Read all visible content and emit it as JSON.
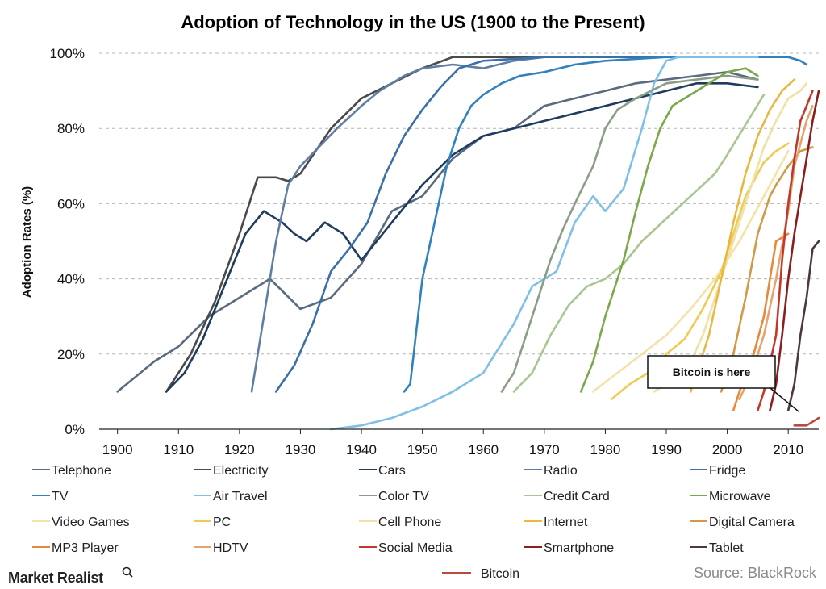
{
  "chart_data": {
    "type": "line",
    "title": "Adoption of Technology in the US (1900 to the Present)",
    "xlabel": "",
    "ylabel": "Adoption Rates (%)",
    "xlim": [
      1897,
      2015
    ],
    "ylim": [
      0,
      100
    ],
    "x_ticks": [
      1900,
      1910,
      1920,
      1930,
      1940,
      1950,
      1960,
      1970,
      1980,
      1990,
      2000,
      2010
    ],
    "y_ticks": [
      0,
      20,
      40,
      60,
      80,
      100
    ],
    "y_tick_labels": [
      "0%",
      "20%",
      "40%",
      "60%",
      "80%",
      "100%"
    ],
    "grid": "horizontal dashed",
    "legend_position": "bottom",
    "annotation": "Bitcoin is here",
    "source": "Source: BlackRock",
    "brand": "Market Realist",
    "series": [
      {
        "name": "Telephone",
        "color": "#5a6b7f",
        "points": [
          [
            1900,
            10
          ],
          [
            1903,
            14
          ],
          [
            1906,
            18
          ],
          [
            1910,
            22
          ],
          [
            1915,
            30
          ],
          [
            1920,
            35
          ],
          [
            1925,
            40
          ],
          [
            1930,
            32
          ],
          [
            1935,
            35
          ],
          [
            1940,
            44
          ],
          [
            1945,
            58
          ],
          [
            1950,
            62
          ],
          [
            1955,
            72
          ],
          [
            1960,
            78
          ],
          [
            1965,
            80
          ],
          [
            1970,
            86
          ],
          [
            1975,
            88
          ],
          [
            1980,
            90
          ],
          [
            1985,
            92
          ],
          [
            1990,
            93
          ],
          [
            1995,
            94
          ],
          [
            2000,
            95
          ],
          [
            2005,
            93
          ]
        ]
      },
      {
        "name": "Electricity",
        "color": "#4a4a4a",
        "points": [
          [
            1908,
            10
          ],
          [
            1912,
            20
          ],
          [
            1916,
            34
          ],
          [
            1920,
            52
          ],
          [
            1923,
            67
          ],
          [
            1926,
            67
          ],
          [
            1928,
            66
          ],
          [
            1930,
            68
          ],
          [
            1935,
            80
          ],
          [
            1940,
            88
          ],
          [
            1945,
            92
          ],
          [
            1950,
            96
          ],
          [
            1955,
            99
          ],
          [
            1960,
            99
          ],
          [
            1970,
            99
          ],
          [
            1990,
            99
          ],
          [
            2005,
            99
          ]
        ]
      },
      {
        "name": "Cars",
        "color": "#1f3b5e",
        "points": [
          [
            1908,
            10
          ],
          [
            1911,
            15
          ],
          [
            1914,
            24
          ],
          [
            1918,
            40
          ],
          [
            1921,
            52
          ],
          [
            1924,
            58
          ],
          [
            1927,
            55
          ],
          [
            1929,
            52
          ],
          [
            1931,
            50
          ],
          [
            1934,
            55
          ],
          [
            1937,
            52
          ],
          [
            1940,
            45
          ],
          [
            1945,
            55
          ],
          [
            1950,
            65
          ],
          [
            1955,
            73
          ],
          [
            1960,
            78
          ],
          [
            1965,
            80
          ],
          [
            1970,
            82
          ],
          [
            1975,
            84
          ],
          [
            1980,
            86
          ],
          [
            1985,
            88
          ],
          [
            1990,
            90
          ],
          [
            1995,
            92
          ],
          [
            2000,
            92
          ],
          [
            2005,
            91
          ]
        ]
      },
      {
        "name": "Radio",
        "color": "#5f7ea3",
        "points": [
          [
            1922,
            10
          ],
          [
            1924,
            30
          ],
          [
            1926,
            50
          ],
          [
            1928,
            65
          ],
          [
            1930,
            70
          ],
          [
            1933,
            75
          ],
          [
            1936,
            80
          ],
          [
            1940,
            86
          ],
          [
            1943,
            90
          ],
          [
            1947,
            94
          ],
          [
            1950,
            96
          ],
          [
            1955,
            97
          ],
          [
            1960,
            96
          ],
          [
            1965,
            98
          ],
          [
            1970,
            99
          ],
          [
            1990,
            99
          ],
          [
            2005,
            99
          ]
        ]
      },
      {
        "name": "Fridge",
        "color": "#3b6fa8",
        "points": [
          [
            1926,
            10
          ],
          [
            1929,
            17
          ],
          [
            1932,
            28
          ],
          [
            1935,
            42
          ],
          [
            1938,
            48
          ],
          [
            1941,
            55
          ],
          [
            1944,
            68
          ],
          [
            1947,
            78
          ],
          [
            1950,
            85
          ],
          [
            1953,
            91
          ],
          [
            1956,
            96
          ],
          [
            1960,
            98
          ],
          [
            1970,
            99
          ],
          [
            1990,
            99
          ],
          [
            2005,
            99
          ]
        ]
      },
      {
        "name": "TV",
        "color": "#2f82bd",
        "points": [
          [
            1947,
            10
          ],
          [
            1948,
            12
          ],
          [
            1950,
            40
          ],
          [
            1952,
            55
          ],
          [
            1954,
            70
          ],
          [
            1956,
            80
          ],
          [
            1958,
            86
          ],
          [
            1960,
            89
          ],
          [
            1963,
            92
          ],
          [
            1966,
            94
          ],
          [
            1970,
            95
          ],
          [
            1975,
            97
          ],
          [
            1980,
            98
          ],
          [
            1990,
            99
          ],
          [
            2000,
            99
          ],
          [
            2010,
            99
          ],
          [
            2012,
            98
          ],
          [
            2013,
            97
          ]
        ]
      },
      {
        "name": "Air Travel",
        "color": "#7fc0e8",
        "points": [
          [
            1935,
            0
          ],
          [
            1940,
            1
          ],
          [
            1945,
            3
          ],
          [
            1950,
            6
          ],
          [
            1955,
            10
          ],
          [
            1960,
            15
          ],
          [
            1965,
            28
          ],
          [
            1968,
            38
          ],
          [
            1972,
            42
          ],
          [
            1975,
            55
          ],
          [
            1978,
            62
          ],
          [
            1980,
            58
          ],
          [
            1983,
            64
          ],
          [
            1986,
            80
          ],
          [
            1988,
            92
          ],
          [
            1990,
            98
          ],
          [
            1992,
            99
          ],
          [
            2005,
            99
          ]
        ]
      },
      {
        "name": "Color TV",
        "color": "#8a9e86",
        "points": [
          [
            1963,
            10
          ],
          [
            1965,
            15
          ],
          [
            1967,
            25
          ],
          [
            1969,
            35
          ],
          [
            1971,
            45
          ],
          [
            1973,
            53
          ],
          [
            1975,
            60
          ],
          [
            1978,
            70
          ],
          [
            1980,
            80
          ],
          [
            1982,
            85
          ],
          [
            1985,
            88
          ],
          [
            1990,
            92
          ],
          [
            1995,
            93
          ],
          [
            2000,
            94
          ],
          [
            2005,
            93
          ]
        ]
      },
      {
        "name": "Credit Card",
        "color": "#a9c690",
        "points": [
          [
            1965,
            10
          ],
          [
            1968,
            15
          ],
          [
            1971,
            25
          ],
          [
            1974,
            33
          ],
          [
            1977,
            38
          ],
          [
            1980,
            40
          ],
          [
            1983,
            44
          ],
          [
            1986,
            50
          ],
          [
            1990,
            56
          ],
          [
            1994,
            62
          ],
          [
            1998,
            68
          ],
          [
            2000,
            73
          ],
          [
            2003,
            81
          ],
          [
            2006,
            89
          ]
        ]
      },
      {
        "name": "Microwave",
        "color": "#7aa84a",
        "points": [
          [
            1976,
            10
          ],
          [
            1978,
            18
          ],
          [
            1980,
            30
          ],
          [
            1983,
            45
          ],
          [
            1985,
            58
          ],
          [
            1987,
            70
          ],
          [
            1989,
            80
          ],
          [
            1991,
            86
          ],
          [
            1993,
            88
          ],
          [
            1995,
            90
          ],
          [
            1997,
            92
          ],
          [
            2000,
            95
          ],
          [
            2003,
            96
          ],
          [
            2005,
            94
          ]
        ]
      },
      {
        "name": "Video Games",
        "color": "#f3e3a8",
        "points": [
          [
            1978,
            10
          ],
          [
            1982,
            15
          ],
          [
            1986,
            20
          ],
          [
            1990,
            25
          ],
          [
            1994,
            32
          ],
          [
            1998,
            40
          ],
          [
            2002,
            50
          ],
          [
            2006,
            62
          ],
          [
            2008,
            68
          ],
          [
            2010,
            74
          ]
        ]
      },
      {
        "name": "PC",
        "color": "#f0cb54",
        "points": [
          [
            1981,
            8
          ],
          [
            1984,
            12
          ],
          [
            1987,
            15
          ],
          [
            1990,
            20
          ],
          [
            1993,
            24
          ],
          [
            1996,
            32
          ],
          [
            1999,
            42
          ],
          [
            2001,
            52
          ],
          [
            2003,
            62
          ],
          [
            2006,
            71
          ],
          [
            2008,
            74
          ],
          [
            2010,
            76
          ]
        ]
      },
      {
        "name": "Cell Phone",
        "color": "#efe2a6",
        "points": [
          [
            1988,
            10
          ],
          [
            1990,
            12
          ],
          [
            1992,
            15
          ],
          [
            1994,
            18
          ],
          [
            1996,
            25
          ],
          [
            1998,
            35
          ],
          [
            2000,
            45
          ],
          [
            2002,
            55
          ],
          [
            2004,
            65
          ],
          [
            2006,
            75
          ],
          [
            2008,
            82
          ],
          [
            2010,
            88
          ],
          [
            2012,
            90
          ],
          [
            2013,
            92
          ]
        ]
      },
      {
        "name": "Internet",
        "color": "#e8b840",
        "points": [
          [
            1994,
            10
          ],
          [
            1995,
            15
          ],
          [
            1997,
            25
          ],
          [
            1999,
            40
          ],
          [
            2001,
            55
          ],
          [
            2003,
            68
          ],
          [
            2005,
            78
          ],
          [
            2007,
            85
          ],
          [
            2009,
            90
          ],
          [
            2011,
            93
          ]
        ]
      },
      {
        "name": "Digital Camera",
        "color": "#d19a45",
        "points": [
          [
            1999,
            10
          ],
          [
            2001,
            20
          ],
          [
            2003,
            35
          ],
          [
            2005,
            52
          ],
          [
            2007,
            62
          ],
          [
            2008,
            65
          ],
          [
            2010,
            70
          ],
          [
            2012,
            74
          ],
          [
            2014,
            75
          ]
        ]
      },
      {
        "name": "MP3 Player",
        "color": "#e38a3d",
        "points": [
          [
            2001,
            5
          ],
          [
            2002,
            10
          ],
          [
            2004,
            18
          ],
          [
            2006,
            30
          ],
          [
            2007,
            40
          ],
          [
            2008,
            50
          ],
          [
            2010,
            52
          ]
        ]
      },
      {
        "name": "HDTV",
        "color": "#e6a36e",
        "points": [
          [
            2002,
            8
          ],
          [
            2004,
            15
          ],
          [
            2006,
            25
          ],
          [
            2008,
            40
          ],
          [
            2010,
            58
          ],
          [
            2011,
            70
          ],
          [
            2013,
            82
          ],
          [
            2014,
            86
          ]
        ]
      },
      {
        "name": "Social Media",
        "color": "#c0392b",
        "points": [
          [
            2005,
            5
          ],
          [
            2006,
            10
          ],
          [
            2008,
            25
          ],
          [
            2009,
            45
          ],
          [
            2010,
            60
          ],
          [
            2011,
            72
          ],
          [
            2012,
            82
          ],
          [
            2013,
            86
          ],
          [
            2014,
            90
          ]
        ]
      },
      {
        "name": "Smartphone",
        "color": "#8b1e1e",
        "points": [
          [
            2007,
            5
          ],
          [
            2008,
            12
          ],
          [
            2009,
            25
          ],
          [
            2010,
            40
          ],
          [
            2011,
            52
          ],
          [
            2012,
            62
          ],
          [
            2013,
            72
          ],
          [
            2014,
            82
          ],
          [
            2015,
            90
          ]
        ]
      },
      {
        "name": "Tablet",
        "color": "#4a3a3a",
        "points": [
          [
            2010,
            5
          ],
          [
            2011,
            12
          ],
          [
            2012,
            25
          ],
          [
            2013,
            35
          ],
          [
            2014,
            48
          ],
          [
            2015,
            50
          ]
        ]
      },
      {
        "name": "Bitcoin",
        "color": "#b84a3e",
        "points": [
          [
            2011,
            1
          ],
          [
            2012,
            1
          ],
          [
            2013,
            1
          ],
          [
            2014,
            2
          ],
          [
            2015,
            3
          ]
        ]
      }
    ]
  }
}
